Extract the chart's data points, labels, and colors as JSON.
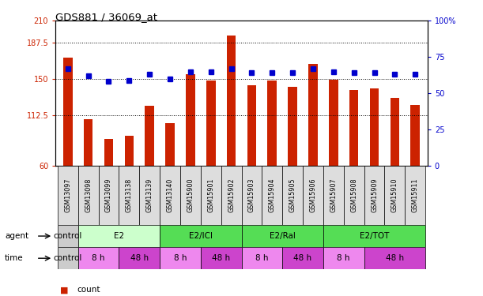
{
  "title": "GDS881 / 36069_at",
  "samples": [
    "GSM13097",
    "GSM13098",
    "GSM13099",
    "GSM13138",
    "GSM13139",
    "GSM13140",
    "GSM15900",
    "GSM15901",
    "GSM15902",
    "GSM15903",
    "GSM15904",
    "GSM15905",
    "GSM15906",
    "GSM15907",
    "GSM15908",
    "GSM15909",
    "GSM15910",
    "GSM15911"
  ],
  "bar_values": [
    172,
    108,
    88,
    91,
    122,
    104,
    155,
    148,
    195,
    143,
    148,
    142,
    165,
    149,
    138,
    140,
    130,
    123
  ],
  "dot_values": [
    67,
    62,
    58,
    59,
    63,
    60,
    65,
    65,
    67,
    64,
    64,
    64,
    67,
    65,
    64,
    64,
    63,
    63
  ],
  "bar_color": "#cc2200",
  "dot_color": "#0000cc",
  "ylim_left": [
    60,
    210
  ],
  "ylim_right": [
    0,
    100
  ],
  "yticks_left": [
    60,
    112.5,
    150,
    187.5,
    210
  ],
  "yticks_right": [
    0,
    25,
    50,
    75,
    100
  ],
  "ytick_labels_left": [
    "60",
    "112.5",
    "150",
    "187.5",
    "210"
  ],
  "ytick_labels_right": [
    "0",
    "25",
    "50",
    "75",
    "100%"
  ],
  "hlines": [
    112.5,
    150,
    187.5
  ],
  "agent_segments": [
    {
      "label": "control",
      "start": 0,
      "end": 1,
      "color": "#cccccc"
    },
    {
      "label": "E2",
      "start": 1,
      "end": 5,
      "color": "#ccffcc"
    },
    {
      "label": "E2/ICI",
      "start": 5,
      "end": 9,
      "color": "#55dd55"
    },
    {
      "label": "E2/Ral",
      "start": 9,
      "end": 13,
      "color": "#55dd55"
    },
    {
      "label": "E2/TOT",
      "start": 13,
      "end": 18,
      "color": "#55dd55"
    }
  ],
  "time_segments": [
    {
      "label": "control",
      "start": 0,
      "end": 1,
      "color": "#cccccc"
    },
    {
      "label": "8 h",
      "start": 1,
      "end": 3,
      "color": "#ee88ee"
    },
    {
      "label": "48 h",
      "start": 3,
      "end": 5,
      "color": "#cc44cc"
    },
    {
      "label": "8 h",
      "start": 5,
      "end": 7,
      "color": "#ee88ee"
    },
    {
      "label": "48 h",
      "start": 7,
      "end": 9,
      "color": "#cc44cc"
    },
    {
      "label": "8 h",
      "start": 9,
      "end": 11,
      "color": "#ee88ee"
    },
    {
      "label": "48 h",
      "start": 11,
      "end": 13,
      "color": "#cc44cc"
    },
    {
      "label": "8 h",
      "start": 13,
      "end": 15,
      "color": "#ee88ee"
    },
    {
      "label": "48 h",
      "start": 15,
      "end": 18,
      "color": "#cc44cc"
    }
  ],
  "bg_color": "#ffffff",
  "plot_bg_color": "#ffffff"
}
